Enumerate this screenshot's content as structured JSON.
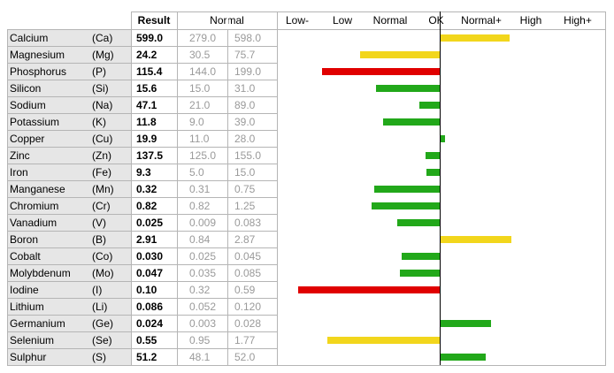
{
  "header": {
    "result_label": "Result",
    "normal_label": "Normal",
    "scale_labels": [
      "Low-",
      "Low",
      "Normal",
      "OK",
      "Normal+",
      "High",
      "High+"
    ]
  },
  "colors": {
    "ok": "#22a81a",
    "warn": "#f2d61c",
    "bad": "#e00000",
    "label_bg": "#e6e6e6",
    "grid": "#b5b5b5"
  },
  "rows": [
    {
      "name": "Calcium",
      "symbol": "(Ca)",
      "result": "599.0",
      "normal_low": "279.0",
      "normal_high": "598.0",
      "deviation": 2.0,
      "status": "warn"
    },
    {
      "name": "Magnesium",
      "symbol": "(Mg)",
      "result": "24.2",
      "normal_low": "30.5",
      "normal_high": "75.7",
      "deviation": -2.3,
      "status": "warn"
    },
    {
      "name": "Phosphorus",
      "symbol": "(P)",
      "result": "115.4",
      "normal_low": "144.0",
      "normal_high": "199.0",
      "deviation": -3.4,
      "status": "bad"
    },
    {
      "name": "Silicon",
      "symbol": "(Si)",
      "result": "15.6",
      "normal_low": "15.0",
      "normal_high": "31.0",
      "deviation": -1.85,
      "status": "ok"
    },
    {
      "name": "Sodium",
      "symbol": "(Na)",
      "result": "47.1",
      "normal_low": "21.0",
      "normal_high": "89.0",
      "deviation": -0.6,
      "status": "ok"
    },
    {
      "name": "Potassium",
      "symbol": "(K)",
      "result": "11.8",
      "normal_low": "9.0",
      "normal_high": "39.0",
      "deviation": -1.65,
      "status": "ok"
    },
    {
      "name": "Copper",
      "symbol": "(Cu)",
      "result": "19.9",
      "normal_low": "11.0",
      "normal_high": "28.0",
      "deviation": 0.12,
      "status": "ok"
    },
    {
      "name": "Zinc",
      "symbol": "(Zn)",
      "result": "137.5",
      "normal_low": "125.0",
      "normal_high": "155.0",
      "deviation": -0.42,
      "status": "ok"
    },
    {
      "name": "Iron",
      "symbol": "(Fe)",
      "result": "9.3",
      "normal_low": "5.0",
      "normal_high": "15.0",
      "deviation": -0.38,
      "status": "ok"
    },
    {
      "name": "Manganese",
      "symbol": "(Mn)",
      "result": "0.32",
      "normal_low": "0.31",
      "normal_high": "0.75",
      "deviation": -1.9,
      "status": "ok"
    },
    {
      "name": "Chromium",
      "symbol": "(Cr)",
      "result": "0.82",
      "normal_low": "0.82",
      "normal_high": "1.25",
      "deviation": -1.97,
      "status": "ok"
    },
    {
      "name": "Vanadium",
      "symbol": "(V)",
      "result": "0.025",
      "normal_low": "0.009",
      "normal_high": "0.083",
      "deviation": -1.22,
      "status": "ok"
    },
    {
      "name": "Boron",
      "symbol": "(B)",
      "result": "2.91",
      "normal_low": "0.84",
      "normal_high": "2.87",
      "deviation": 2.05,
      "status": "warn"
    },
    {
      "name": "Cobalt",
      "symbol": "(Co)",
      "result": "0.030",
      "normal_low": "0.025",
      "normal_high": "0.045",
      "deviation": -1.1,
      "status": "ok"
    },
    {
      "name": "Molybdenum",
      "symbol": "(Mo)",
      "result": "0.047",
      "normal_low": "0.035",
      "normal_high": "0.085",
      "deviation": -1.15,
      "status": "ok"
    },
    {
      "name": "Iodine",
      "symbol": "(I)",
      "result": "0.10",
      "normal_low": "0.32",
      "normal_high": "0.59",
      "deviation": -4.1,
      "status": "bad"
    },
    {
      "name": "Lithium",
      "symbol": "(Li)",
      "result": "0.086",
      "normal_low": "0.052",
      "normal_high": "0.120",
      "deviation": 0,
      "status": "ok"
    },
    {
      "name": "Germanium",
      "symbol": "(Ge)",
      "result": "0.024",
      "normal_low": "0.003",
      "normal_high": "0.028",
      "deviation": 1.45,
      "status": "ok"
    },
    {
      "name": "Selenium",
      "symbol": "(Se)",
      "result": "0.55",
      "normal_low": "0.95",
      "normal_high": "1.77",
      "deviation": -3.25,
      "status": "warn"
    },
    {
      "name": "Sulphur",
      "symbol": "(S)",
      "result": "51.2",
      "normal_low": "48.1",
      "normal_high": "52.0",
      "deviation": 1.3,
      "status": "ok"
    }
  ]
}
